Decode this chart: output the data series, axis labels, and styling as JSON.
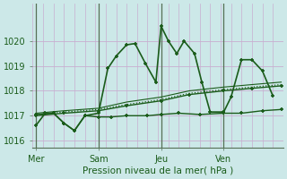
{
  "title": "Pression niveau de la mer( hPa )",
  "bg_color": "#cce8e8",
  "grid_color": "#c8aed0",
  "line_color": "#1a5c1a",
  "ylim": [
    1015.7,
    1021.5
  ],
  "yticks": [
    1016,
    1017,
    1018,
    1019,
    1020
  ],
  "xlim": [
    0,
    24
  ],
  "day_labels": [
    "Mer",
    "Sam",
    "Jeu",
    "Ven"
  ],
  "day_positions": [
    0.3,
    6.3,
    12.3,
    18.3
  ],
  "vline_positions": [
    0.3,
    6.3,
    12.3,
    18.3
  ],
  "series": [
    {
      "x": [
        0.3,
        1.2,
        2.0,
        3.0,
        4.0,
        5.0,
        6.3,
        7.2,
        8.0,
        9.0,
        9.8,
        10.8,
        11.8,
        12.3,
        13.0,
        13.8,
        14.5,
        15.5,
        16.2,
        17.0,
        18.3,
        19.0,
        20.0,
        21.0,
        22.0,
        23.0
      ],
      "y": [
        1016.6,
        1017.1,
        1017.1,
        1016.7,
        1016.4,
        1017.0,
        1017.1,
        1018.9,
        1019.4,
        1019.85,
        1019.9,
        1019.1,
        1018.35,
        1020.6,
        1020.0,
        1019.5,
        1020.0,
        1019.5,
        1018.35,
        1017.15,
        1017.15,
        1017.75,
        1019.25,
        1019.25,
        1018.8,
        1017.8
      ],
      "style": "-",
      "marker": "+",
      "lw": 1.2
    },
    {
      "x": [
        0.3,
        2.0,
        3.0,
        4.0,
        5.0,
        6.3,
        7.5,
        9.0,
        11.0,
        12.3,
        14.0,
        16.0,
        18.3,
        20.0,
        22.0,
        23.8
      ],
      "y": [
        1017.05,
        1017.1,
        1016.7,
        1016.4,
        1017.0,
        1016.95,
        1016.95,
        1017.0,
        1017.0,
        1017.05,
        1017.1,
        1017.05,
        1017.1,
        1017.1,
        1017.2,
        1017.25
      ],
      "style": "-",
      "marker": "+",
      "lw": 1.0
    },
    {
      "x": [
        0.3,
        3.0,
        6.3,
        9.0,
        12.3,
        15.0,
        18.3,
        21.0,
        23.8
      ],
      "y": [
        1017.0,
        1017.1,
        1017.2,
        1017.4,
        1017.6,
        1017.85,
        1018.0,
        1018.1,
        1018.2
      ],
      "style": "-",
      "marker": "+",
      "lw": 1.0
    },
    {
      "x": [
        0.3,
        3.0,
        6.3,
        9.0,
        12.3,
        15.0,
        18.3,
        21.0,
        23.8
      ],
      "y": [
        1017.05,
        1017.15,
        1017.25,
        1017.45,
        1017.65,
        1017.9,
        1018.05,
        1018.15,
        1018.25
      ],
      "style": ":",
      "marker": null,
      "lw": 0.9
    },
    {
      "x": [
        0.3,
        3.0,
        6.3,
        9.0,
        12.3,
        15.0,
        18.3,
        21.0,
        23.8
      ],
      "y": [
        1017.1,
        1017.2,
        1017.3,
        1017.55,
        1017.75,
        1018.0,
        1018.15,
        1018.25,
        1018.35
      ],
      "style": "-",
      "marker": null,
      "lw": 0.8
    }
  ]
}
